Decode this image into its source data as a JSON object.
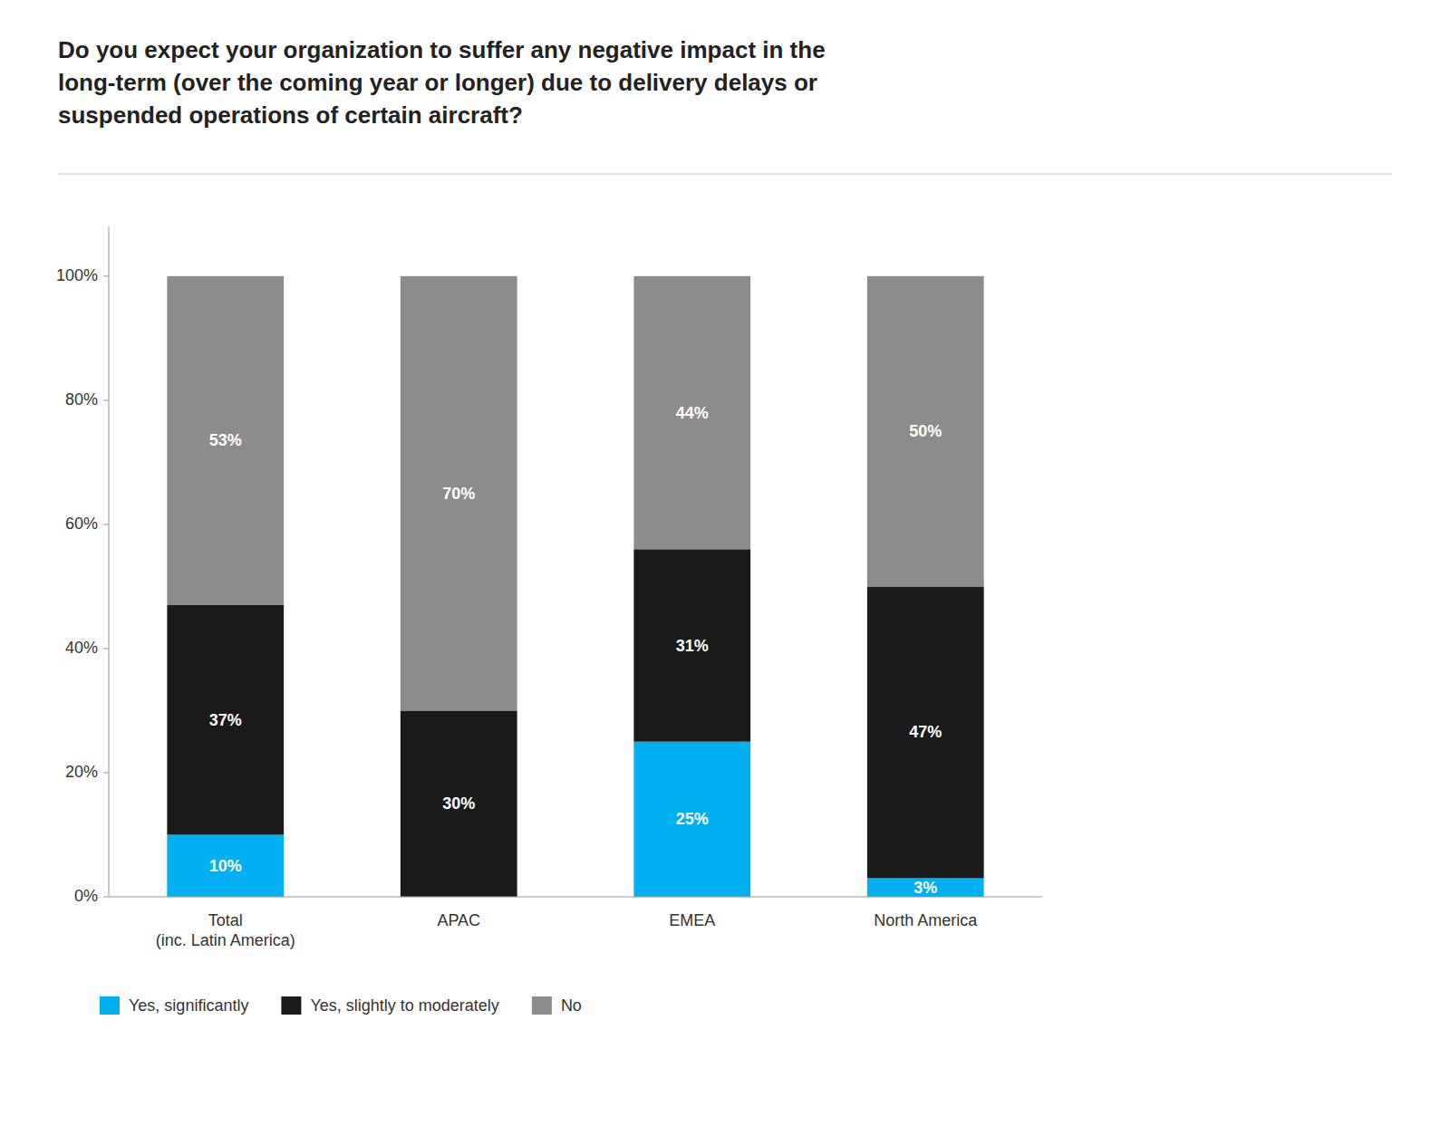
{
  "chart_data": {
    "type": "bar",
    "stacked": true,
    "title": "Do you expect your organization to suffer any negative impact in the\nlong-term (over the coming year or longer) due to delivery delays or\nsuspended operations of certain aircraft?",
    "categories": [
      "Total\n(inc. Latin America)",
      "APAC",
      "EMEA",
      "North America"
    ],
    "series": [
      {
        "name": "Yes, significantly",
        "color": "#00b0f0",
        "values": [
          10,
          0,
          25,
          3
        ],
        "value_labels": [
          "10%",
          null,
          "25%",
          "3%"
        ]
      },
      {
        "name": "Yes, slightly to moderately",
        "color": "#1a1a1a",
        "values": [
          37,
          30,
          31,
          47
        ],
        "value_labels": [
          "37%",
          "30%",
          "31%",
          "47%"
        ]
      },
      {
        "name": "No",
        "color": "#8c8c8c",
        "values": [
          53,
          70,
          44,
          50
        ],
        "value_labels": [
          "53%",
          "70%",
          "44%",
          "50%"
        ]
      }
    ],
    "ylim": [
      0,
      108
    ],
    "yticks": [
      {
        "value": 0,
        "label": "0%"
      },
      {
        "value": 20,
        "label": "20%"
      },
      {
        "value": 40,
        "label": "40%"
      },
      {
        "value": 60,
        "label": "60%"
      },
      {
        "value": 80,
        "label": "80%"
      },
      {
        "value": 100,
        "label": "100%"
      }
    ],
    "grid": false,
    "legend": "lower left",
    "data_labels": true
  }
}
